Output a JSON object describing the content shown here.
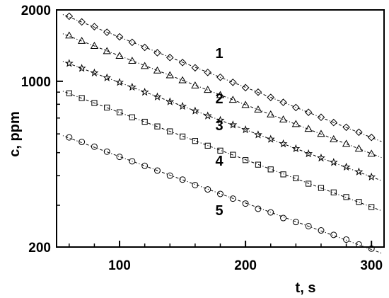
{
  "chart_data": {
    "type": "scatter",
    "title": "",
    "xlabel": "t, s",
    "ylabel": "c, ppm",
    "xlim": [
      50,
      310
    ],
    "ylim": [
      200,
      2000
    ],
    "y_scale": "log",
    "grid": false,
    "legend": "none",
    "x_ticks": [
      100,
      200,
      300
    ],
    "y_ticks": [
      200,
      1000,
      2000
    ],
    "x_tick_labels": [
      "100",
      "200",
      "300"
    ],
    "y_tick_labels": [
      "200",
      "1000",
      "2000"
    ],
    "series": [
      {
        "name": "1",
        "marker": "diamond",
        "x": [
          60,
          70,
          80,
          90,
          100,
          110,
          120,
          130,
          140,
          150,
          160,
          170,
          180,
          190,
          200,
          210,
          220,
          230,
          240,
          250,
          260,
          270,
          280,
          290,
          300
        ],
        "y": [
          1880,
          1780,
          1700,
          1610,
          1540,
          1460,
          1390,
          1320,
          1260,
          1200,
          1140,
          1090,
          1040,
          990,
          940,
          900,
          855,
          815,
          775,
          740,
          705,
          670,
          640,
          610,
          580
        ]
      },
      {
        "name": "2",
        "marker": "triangle",
        "x": [
          60,
          70,
          80,
          90,
          100,
          110,
          120,
          130,
          140,
          150,
          160,
          170,
          180,
          190,
          200,
          210,
          220,
          230,
          240,
          250,
          260,
          270,
          280,
          290,
          300
        ],
        "y": [
          1560,
          1480,
          1410,
          1340,
          1280,
          1220,
          1160,
          1110,
          1060,
          1010,
          960,
          920,
          875,
          835,
          795,
          760,
          725,
          690,
          660,
          630,
          600,
          570,
          545,
          520,
          495
        ]
      },
      {
        "name": "3",
        "marker": "star",
        "x": [
          60,
          70,
          80,
          90,
          100,
          110,
          120,
          130,
          140,
          150,
          160,
          170,
          180,
          190,
          200,
          210,
          220,
          230,
          240,
          250,
          260,
          270,
          280,
          290,
          300
        ],
        "y": [
          1190,
          1135,
          1085,
          1035,
          990,
          945,
          900,
          860,
          820,
          785,
          750,
          715,
          685,
          655,
          625,
          595,
          570,
          545,
          520,
          495,
          475,
          455,
          435,
          415,
          395
        ]
      },
      {
        "name": "4",
        "marker": "square",
        "x": [
          60,
          70,
          80,
          90,
          100,
          110,
          120,
          130,
          140,
          150,
          160,
          170,
          180,
          190,
          200,
          210,
          220,
          230,
          240,
          250,
          260,
          270,
          280,
          290,
          300
        ],
        "y": [
          890,
          850,
          810,
          775,
          740,
          705,
          675,
          645,
          615,
          585,
          560,
          535,
          510,
          490,
          465,
          445,
          425,
          405,
          390,
          370,
          355,
          340,
          325,
          310,
          295
        ]
      },
      {
        "name": "5",
        "marker": "circle",
        "x": [
          60,
          70,
          80,
          90,
          100,
          110,
          120,
          130,
          140,
          150,
          160,
          170,
          180,
          190,
          200,
          210,
          220,
          230,
          240,
          250,
          260,
          270,
          280,
          290,
          300
        ],
        "y": [
          580,
          555,
          530,
          505,
          480,
          460,
          440,
          420,
          400,
          385,
          365,
          350,
          335,
          320,
          305,
          290,
          280,
          265,
          255,
          245,
          235,
          225,
          215,
          205,
          197
        ]
      }
    ]
  }
}
